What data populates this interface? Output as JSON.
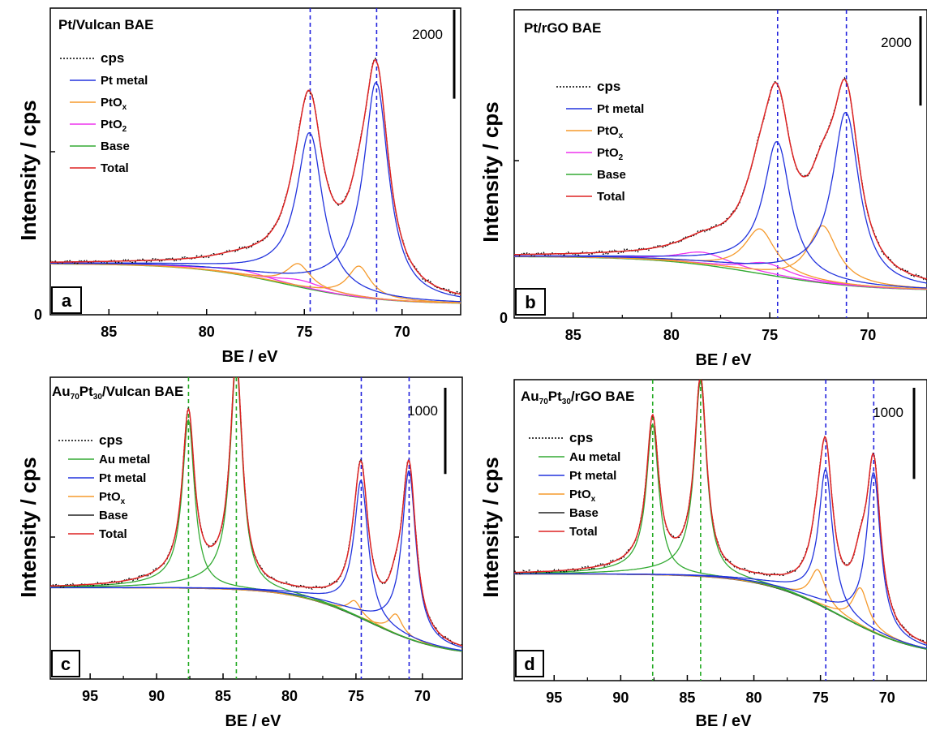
{
  "chart_data": [
    {
      "panel": "a",
      "type": "line",
      "title": "Pt/Vulcan BAE",
      "xlabel": "BE / eV",
      "ylabel": "Intensity / cps",
      "xlim": [
        88,
        67
      ],
      "xticks": [
        85,
        80,
        75,
        70
      ],
      "ylim": [
        0,
        6900
      ],
      "yticks": [
        "0"
      ],
      "scale_bar": {
        "label": "2000",
        "value": 2000
      },
      "reference_lines": [
        {
          "x": 74.7,
          "color": "#2222dd"
        },
        {
          "x": 71.3,
          "color": "#2222dd"
        }
      ],
      "legend": [
        {
          "label": "cps",
          "color": "#000000",
          "style": "dotted"
        },
        {
          "label": "Pt metal",
          "color": "#2233dd"
        },
        {
          "label": "PtO",
          "sub": "x",
          "color": "#f59a2c"
        },
        {
          "label": "PtO",
          "sub": "2",
          "color": "#ee33ee"
        },
        {
          "label": "Base",
          "color": "#33aa33"
        },
        {
          "label": "Total",
          "color": "#dd2222"
        }
      ],
      "base": {
        "left": 1150,
        "right": 240,
        "center": 76,
        "width": 2.4
      },
      "peaks": {
        "metal": [
          {
            "center": 74.7,
            "amp": 3500,
            "width": 0.78
          },
          {
            "center": 71.3,
            "amp": 4850,
            "width": 0.75
          }
        ],
        "oxide_x": [
          {
            "center": 75.3,
            "amp": 520,
            "width": 0.75
          },
          {
            "center": 72.2,
            "amp": 700,
            "width": 0.7
          }
        ],
        "oxide_2": [
          {
            "center": 78.4,
            "amp": 120,
            "width": 1.7
          },
          {
            "center": 75.2,
            "amp": 160,
            "width": 1.5
          }
        ],
        "tail_amp": 0.9
      }
    },
    {
      "panel": "b",
      "type": "line",
      "title": "Pt/rGO BAE",
      "xlabel": "BE / eV",
      "ylabel": "Intensity / cps",
      "xlim": [
        88,
        67
      ],
      "xticks": [
        85,
        80,
        75,
        70
      ],
      "ylim": [
        0,
        6900
      ],
      "yticks": [
        "0"
      ],
      "scale_bar": {
        "label": "2000",
        "value": 2000
      },
      "reference_lines": [
        {
          "x": 74.6,
          "color": "#2222dd"
        },
        {
          "x": 71.1,
          "color": "#2222dd"
        }
      ],
      "legend": [
        {
          "label": "cps",
          "color": "#000000",
          "style": "dotted"
        },
        {
          "label": "Pt metal",
          "color": "#2233dd"
        },
        {
          "label": "PtO",
          "sub": "x",
          "color": "#f59a2c"
        },
        {
          "label": "PtO",
          "sub": "2",
          "color": "#ee33ee"
        },
        {
          "label": "Base",
          "color": "#33aa33"
        },
        {
          "label": "Total",
          "color": "#dd2222"
        }
      ],
      "base": {
        "left": 1380,
        "right": 610,
        "center": 75.5,
        "width": 2.6
      },
      "peaks": {
        "metal": [
          {
            "center": 74.6,
            "amp": 3000,
            "width": 0.8
          },
          {
            "center": 71.1,
            "amp": 3850,
            "width": 0.8
          }
        ],
        "oxide_x": [
          {
            "center": 75.5,
            "amp": 1000,
            "width": 0.95
          },
          {
            "center": 72.3,
            "amp": 1280,
            "width": 0.9
          }
        ],
        "oxide_2": [
          {
            "center": 78.4,
            "amp": 280,
            "width": 1.6
          },
          {
            "center": 75.2,
            "amp": 260,
            "width": 1.4
          }
        ],
        "tail_amp": 0.9
      }
    },
    {
      "panel": "c",
      "type": "line",
      "title": "Au70Pt30/Vulcan BAE",
      "title_parts": [
        "Au",
        "70",
        "Pt",
        "30",
        "/Vulcan BAE"
      ],
      "xlabel": "BE / eV",
      "ylabel": "Intensity / cps",
      "xlim": [
        98,
        67
      ],
      "xticks": [
        95,
        90,
        85,
        80,
        75,
        70
      ],
      "ylim": [
        0,
        3500
      ],
      "yticks": [],
      "scale_bar": {
        "label": "1000",
        "value": 1000
      },
      "reference_lines": [
        {
          "x": 87.6,
          "color": "#22aa22"
        },
        {
          "x": 84.0,
          "color": "#22aa22"
        },
        {
          "x": 74.6,
          "color": "#2222dd"
        },
        {
          "x": 71.0,
          "color": "#2222dd"
        }
      ],
      "legend": [
        {
          "label": "cps",
          "color": "#000000",
          "style": "dotted"
        },
        {
          "label": "Au metal",
          "color": "#33aa33"
        },
        {
          "label": "Pt metal",
          "color": "#2233dd"
        },
        {
          "label": "PtO",
          "sub": "x",
          "color": "#f59a2c"
        },
        {
          "label": "Base",
          "color": "#222222"
        },
        {
          "label": "Total",
          "color": "#dd2222"
        }
      ],
      "base": {
        "left": 1060,
        "right": 260,
        "center": 74,
        "width": 2.8
      },
      "peaks": {
        "au": [
          {
            "center": 87.6,
            "amp": 1950,
            "width": 0.55
          },
          {
            "center": 84.0,
            "amp": 2620,
            "width": 0.55
          }
        ],
        "metal": [
          {
            "center": 74.6,
            "amp": 1600,
            "width": 0.62
          },
          {
            "center": 71.0,
            "amp": 1950,
            "width": 0.62
          }
        ],
        "oxide_x": [
          {
            "center": 75.1,
            "amp": 170,
            "width": 0.6
          },
          {
            "center": 72.0,
            "amp": 230,
            "width": 0.6
          }
        ],
        "tail_amp": 0.55
      }
    },
    {
      "panel": "d",
      "type": "line",
      "title": "Au70Pt30/rGO BAE",
      "title_parts": [
        "Au",
        "70",
        "Pt",
        "30",
        "/rGO BAE"
      ],
      "xlabel": "BE / eV",
      "ylabel": "Intensity / cps",
      "xlim": [
        98,
        67
      ],
      "xticks": [
        95,
        90,
        85,
        80,
        75,
        70
      ],
      "ylim": [
        0,
        3300
      ],
      "yticks": [],
      "scale_bar": {
        "label": "1000",
        "value": 1000
      },
      "reference_lines": [
        {
          "x": 87.6,
          "color": "#22aa22"
        },
        {
          "x": 84.0,
          "color": "#22aa22"
        },
        {
          "x": 74.6,
          "color": "#2222dd"
        },
        {
          "x": 71.0,
          "color": "#2222dd"
        }
      ],
      "legend": [
        {
          "label": "cps",
          "color": "#000000",
          "style": "dotted"
        },
        {
          "label": "Au metal",
          "color": "#33aa33"
        },
        {
          "label": "Pt metal",
          "color": "#2233dd"
        },
        {
          "label": "PtO",
          "sub": "x",
          "color": "#f59a2c"
        },
        {
          "label": "Base",
          "color": "#222222"
        },
        {
          "label": "Total",
          "color": "#dd2222"
        }
      ],
      "base": {
        "left": 1170,
        "right": 250,
        "center": 73.5,
        "width": 3.0
      },
      "peaks": {
        "au": [
          {
            "center": 87.6,
            "amp": 1650,
            "width": 0.55
          },
          {
            "center": 84.0,
            "amp": 2130,
            "width": 0.55
          }
        ],
        "metal": [
          {
            "center": 74.6,
            "amp": 1520,
            "width": 0.62
          },
          {
            "center": 71.0,
            "amp": 1750,
            "width": 0.62
          }
        ],
        "oxide_x": [
          {
            "center": 75.2,
            "amp": 380,
            "width": 0.7
          },
          {
            "center": 72.0,
            "amp": 420,
            "width": 0.7
          }
        ],
        "tail_amp": 0.55
      }
    }
  ]
}
